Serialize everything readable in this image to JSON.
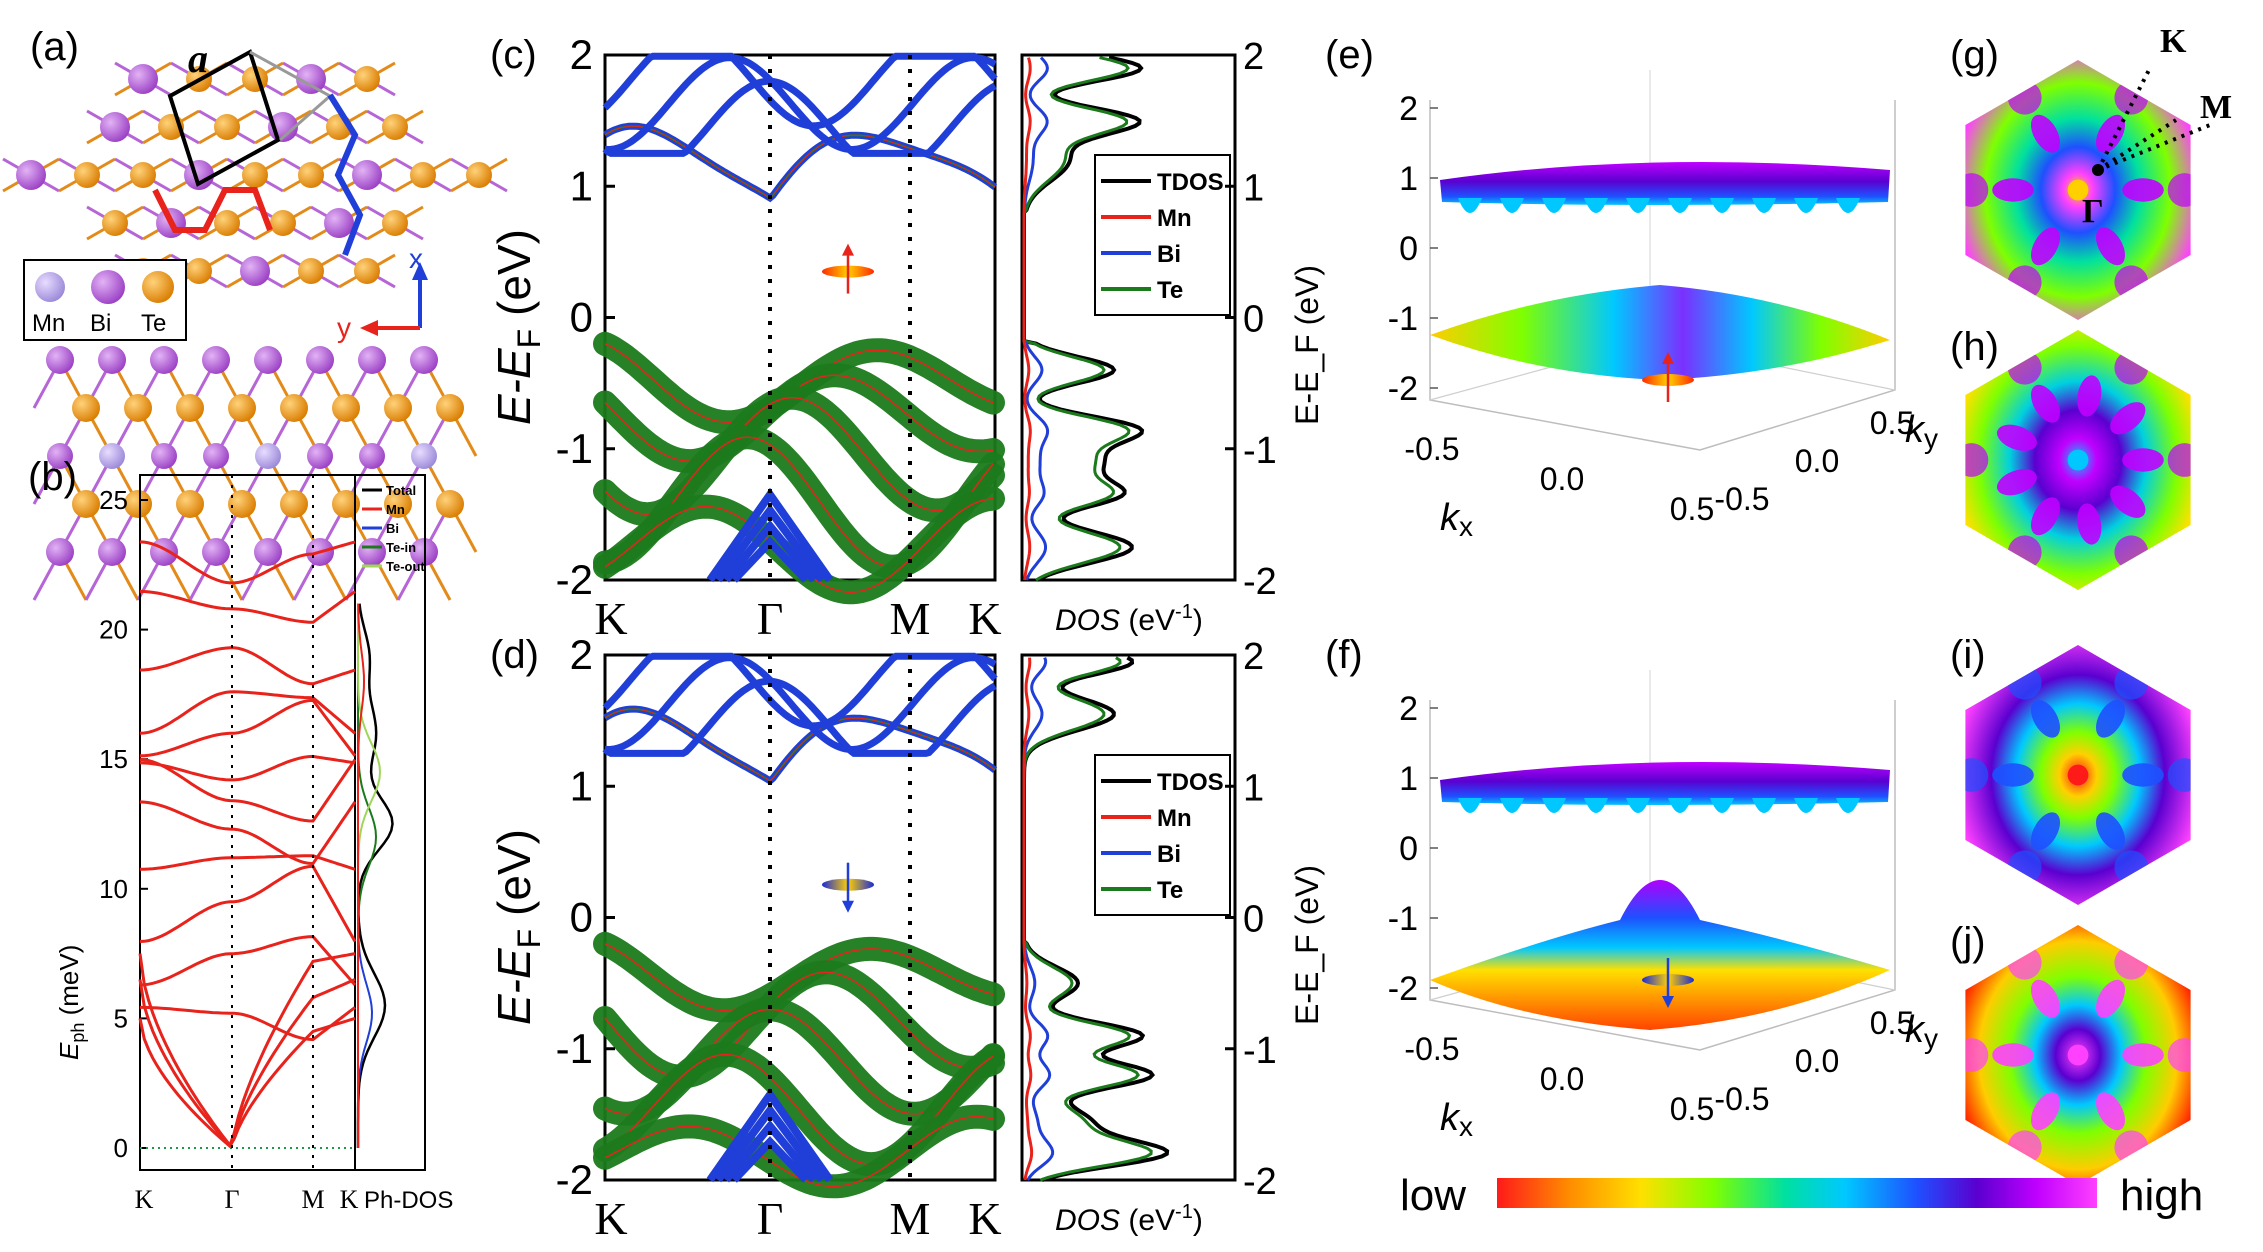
{
  "panels": {
    "a": "(a)",
    "b": "(b)",
    "c": "(c)",
    "d": "(d)",
    "e": "(e)",
    "f": "(f)",
    "g": "(g)",
    "h": "(h)",
    "i": "(i)",
    "j": "(j)"
  },
  "structure": {
    "lattice_label": "a",
    "legend": [
      "Mn",
      "Bi",
      "Te"
    ],
    "axis_x": "x",
    "axis_y": "y",
    "colors": {
      "Mn": "#b39ddb",
      "Bi": "#b565d6",
      "Te": "#f59c1a"
    }
  },
  "k_path": [
    "K",
    "Γ",
    "M",
    "K"
  ],
  "chart_data": [
    {
      "id": "b-phonon",
      "type": "line",
      "title": "",
      "ylabel_main": "E",
      "ylabel_sub": "ph",
      "ylabel_unit": " (meV)",
      "ylim": [
        0,
        25
      ],
      "yticks": [
        0,
        5,
        10,
        15,
        20,
        25
      ],
      "xticks": [
        "K",
        "Γ",
        "M",
        "K"
      ],
      "dos_xlabel": "Ph-DOS",
      "dos_legend": [
        "Total",
        "Mn",
        "Bi",
        "Te-in",
        "Te-out"
      ],
      "dos_colors": [
        "#000000",
        "#e8231c",
        "#1f3fd8",
        "#1b7a1b",
        "#9fd65a"
      ],
      "branches_at_gamma_meV": [
        0,
        0,
        0,
        5.2,
        7.5,
        9.5,
        11.2,
        12.3,
        13.4,
        14.2,
        16.0,
        17.6,
        19.3,
        20.8,
        21.8
      ]
    },
    {
      "id": "c-bands-up",
      "type": "line",
      "ylabel_main": "E-E",
      "ylabel_sub": "F",
      "ylabel_unit": " (eV)",
      "ylim": [
        -2,
        2
      ],
      "yticks": [
        "-2",
        "-1",
        "0",
        "1",
        "2"
      ],
      "xticks": [
        "K",
        "Γ",
        "M",
        "K"
      ],
      "conduction_band_min_eV": 0.87,
      "valence_band_max_eV": -0.2
    },
    {
      "id": "c-dos-up",
      "type": "line",
      "xlabel_main": "DOS",
      "xlabel_unit": " (eV",
      "xlabel_sup": "-1",
      "xlabel_close": ")",
      "ylabel": "E-E_F (eV)",
      "yticks": [
        "-2",
        "-1",
        "0",
        "1",
        "2"
      ],
      "legend": [
        "TDOS",
        "Mn",
        "Bi",
        "Te"
      ],
      "colors": [
        "#000000",
        "#e8231c",
        "#1f3fd8",
        "#1b7a1b"
      ]
    },
    {
      "id": "d-bands-down",
      "type": "line",
      "ylabel_main": "E-E",
      "ylabel_sub": "F",
      "ylabel_unit": " (eV)",
      "ylim": [
        -2,
        2
      ],
      "yticks": [
        "-2",
        "-1",
        "0",
        "1",
        "2"
      ],
      "xticks": [
        "K",
        "Γ",
        "M",
        "K"
      ],
      "conduction_band_min_eV": 1.0,
      "valence_band_max_eV": -0.2
    },
    {
      "id": "d-dos-down",
      "type": "line",
      "xlabel_main": "DOS",
      "xlabel_unit": " (eV",
      "xlabel_sup": "-1",
      "xlabel_close": ")",
      "ylabel": "E-E_F (eV)",
      "yticks": [
        "-2",
        "-1",
        "0",
        "1",
        "2"
      ],
      "legend": [
        "TDOS",
        "Mn",
        "Bi",
        "Te"
      ],
      "colors": [
        "#000000",
        "#e8231c",
        "#1f3fd8",
        "#1b7a1b"
      ]
    },
    {
      "id": "e-f-surfaces",
      "type": "area",
      "zticks": [
        "-2",
        "-1",
        "0",
        "1",
        "2"
      ],
      "kx_ticks": [
        "-0.5",
        "0.0",
        "0.5"
      ],
      "ky_ticks": [
        "-0.5",
        "0.0",
        "0.5"
      ],
      "kx_label": "k",
      "kx_sub": "x",
      "ky_label": "k",
      "ky_sub": "y",
      "zlabel": "E-E_F (eV)"
    },
    {
      "id": "g-bz",
      "type": "heatmap",
      "labels": [
        "K",
        "M",
        "Γ"
      ]
    }
  ],
  "colorbar": {
    "low": "low",
    "high": "high",
    "stops": [
      "#ff1a1a",
      "#ff8c00",
      "#ffe000",
      "#7fff00",
      "#00e0a0",
      "#00c8ff",
      "#1e50ff",
      "#5a00d0",
      "#c000ff",
      "#ff40ff"
    ]
  }
}
